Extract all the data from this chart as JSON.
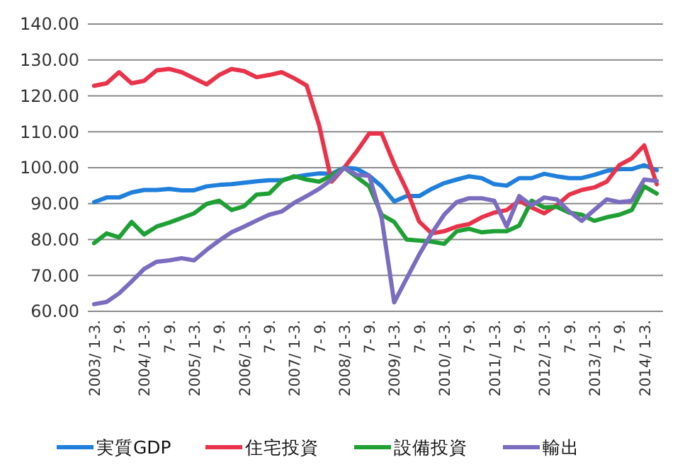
{
  "chart_data": {
    "type": "line",
    "categories": [
      "2003/ 1-3.",
      null,
      "7- 9.",
      null,
      "2004/ 1-3.",
      null,
      "7- 9.",
      null,
      "2005/ 1-3.",
      null,
      "7- 9.",
      null,
      "2006/ 1-3.",
      null,
      "7- 9.",
      null,
      "2007/ 1-3.",
      null,
      "7- 9.",
      null,
      "2008/ 1-3.",
      null,
      "7- 9.",
      null,
      "2009/ 1-3.",
      null,
      "7- 9.",
      null,
      "2010/ 1-3.",
      null,
      "7- 9.",
      null,
      "2011/ 1-3.",
      null,
      "7- 9.",
      null,
      "2012/ 1-3.",
      null,
      "7- 9.",
      null,
      "2013/ 1-3.",
      null,
      "7- 9.",
      null,
      "2014/ 1-3.",
      null
    ],
    "series": [
      {
        "name": "実質GDP",
        "color": "#1f7fdb",
        "values": [
          90.4,
          91.7,
          91.7,
          93.1,
          93.8,
          93.8,
          94.1,
          93.7,
          93.7,
          94.8,
          95.2,
          95.4,
          95.8,
          96.2,
          96.5,
          96.5,
          97.4,
          98,
          98.4,
          98.3,
          100,
          99.7,
          97.8,
          94.8,
          90.6,
          92.1,
          92.1,
          94.1,
          95.7,
          96.7,
          97.6,
          97.1,
          95.4,
          95,
          97.1,
          97.1,
          98.3,
          97.6,
          97.1,
          97.1,
          98,
          99.1,
          99.6,
          99.6,
          100.7,
          99.3
        ]
      },
      {
        "name": "住宅投資",
        "color": "#e8334a",
        "values": [
          122.8,
          123.5,
          126.6,
          123.5,
          124.2,
          127.1,
          127.5,
          126.6,
          124.9,
          123.2,
          125.8,
          127.5,
          126.9,
          125.2,
          125.8,
          126.6,
          124.9,
          122.9,
          111.8,
          96.1,
          100,
          104.5,
          109.5,
          109.5,
          101,
          93.8,
          85,
          81.7,
          82.3,
          83.6,
          84.3,
          86.2,
          87.5,
          88.2,
          90.8,
          88.9,
          87.3,
          89.5,
          92.5,
          93.8,
          94.5,
          96.1,
          100.7,
          102.6,
          106.2,
          95.4
        ]
      },
      {
        "name": "設備投資",
        "color": "#1fa035",
        "values": [
          79,
          81.7,
          80.6,
          84.9,
          81.4,
          83.6,
          84.7,
          86,
          87.3,
          89.9,
          90.8,
          88.2,
          89.3,
          92.5,
          92.8,
          96.3,
          97.6,
          96.7,
          96.1,
          97.8,
          100,
          97.4,
          94.8,
          86.9,
          84.9,
          80,
          79.7,
          79.4,
          78.8,
          82.3,
          83,
          82,
          82.3,
          82.3,
          83.9,
          90.8,
          88.9,
          89.1,
          87.5,
          86.9,
          85.2,
          86.2,
          86.9,
          88.2,
          94.8,
          92.8
        ]
      },
      {
        "name": "輸出",
        "color": "#7b6cc0",
        "values": [
          62,
          62.6,
          65,
          68.3,
          71.8,
          73.8,
          74.2,
          74.8,
          74.2,
          77.1,
          79.7,
          82,
          83.6,
          85.3,
          86.9,
          87.8,
          90.2,
          92.1,
          94.1,
          96.7,
          100,
          98,
          97.8,
          86,
          62.5,
          69.2,
          75.8,
          81.7,
          86.9,
          90.4,
          91.5,
          91.5,
          90.8,
          83.6,
          92.1,
          89.5,
          91.7,
          91.2,
          87.8,
          85.2,
          88.2,
          91.2,
          90.4,
          90.8,
          96.7,
          96.3
        ]
      }
    ],
    "ylim": [
      60,
      140
    ],
    "yticks": [
      {
        "value": 60,
        "label": "60.00"
      },
      {
        "value": 70,
        "label": "70.00"
      },
      {
        "value": 80,
        "label": "80.00"
      },
      {
        "value": 90,
        "label": "90.00"
      },
      {
        "value": 100,
        "label": "100.00"
      },
      {
        "value": 110,
        "label": "110.00"
      },
      {
        "value": 120,
        "label": "120.00"
      },
      {
        "value": 130,
        "label": "130.00"
      },
      {
        "value": 140,
        "label": "140.00"
      }
    ],
    "grid": "y",
    "legend": "bottom",
    "marker": "none",
    "line_style": "solid"
  }
}
